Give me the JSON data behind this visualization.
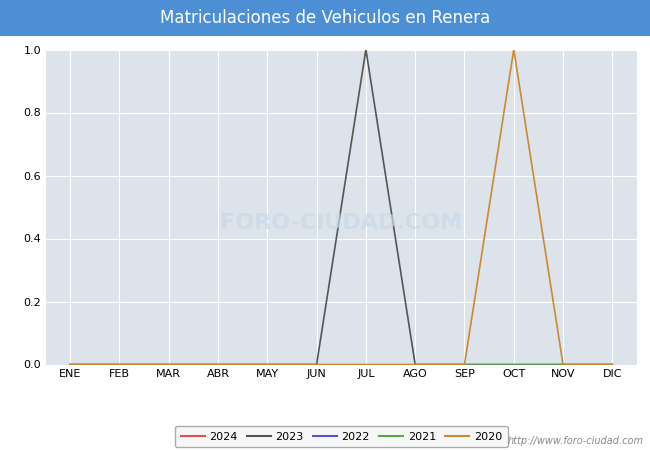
{
  "title": "Matriculaciones de Vehiculos en Renera",
  "title_bg_color": "#4d8fd4",
  "title_text_color": "#ffffff",
  "months": [
    "ENE",
    "FEB",
    "MAR",
    "ABR",
    "MAY",
    "JUN",
    "JUL",
    "AGO",
    "SEP",
    "OCT",
    "NOV",
    "DIC"
  ],
  "month_indices": [
    1,
    2,
    3,
    4,
    5,
    6,
    7,
    8,
    9,
    10,
    11,
    12
  ],
  "series": [
    {
      "year": "2024",
      "color": "#e05050",
      "data": [
        0,
        0,
        0,
        0,
        0,
        0,
        0,
        0,
        0,
        0,
        0,
        0
      ]
    },
    {
      "year": "2023",
      "color": "#555555",
      "data": [
        0,
        0,
        0,
        0,
        0,
        0,
        1,
        0,
        0,
        0,
        0,
        0
      ]
    },
    {
      "year": "2022",
      "color": "#5555bb",
      "data": [
        0,
        0,
        0,
        0,
        0,
        0,
        0,
        0,
        0,
        0,
        0,
        0
      ]
    },
    {
      "year": "2021",
      "color": "#55aa44",
      "data": [
        0,
        0,
        0,
        0,
        0,
        0,
        0,
        0,
        0,
        0,
        0,
        0
      ]
    },
    {
      "year": "2020",
      "color": "#cc8833",
      "data": [
        0,
        0,
        0,
        0,
        0,
        0,
        0,
        0,
        0,
        1,
        0,
        0
      ]
    }
  ],
  "ylim": [
    0.0,
    1.0
  ],
  "yticks": [
    0.0,
    0.2,
    0.4,
    0.6,
    0.8,
    1.0
  ],
  "grid_color": "#ffffff",
  "plot_bg_color": "#dde3ea",
  "fig_bg_color": "#ffffff",
  "watermark_text": "FORO-CIUDAD.COM",
  "watermark_color": "#c8d8e8",
  "watermark_alpha": 0.7,
  "url_text": "http://www.foro-ciudad.com",
  "url_color": "#888888",
  "legend_bg": "#f5f5f5",
  "legend_border": "#999999",
  "title_fontsize": 12,
  "tick_fontsize": 8
}
